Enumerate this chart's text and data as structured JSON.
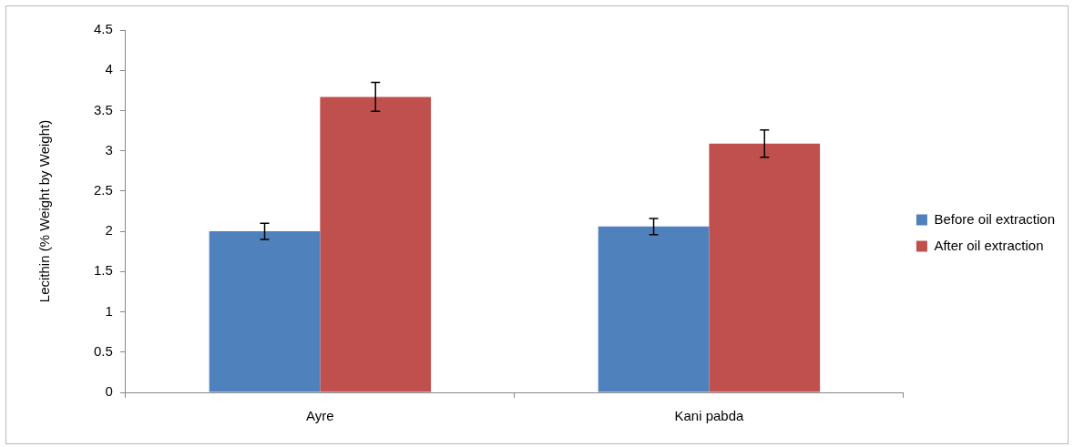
{
  "chart_data": {
    "type": "bar",
    "ylabel": "Lecithin (% Weight by Weight)",
    "categories": [
      "Ayre",
      "Kani pabda"
    ],
    "series": [
      {
        "name": "Before oil extraction",
        "color": "#4f81bd",
        "values": [
          2.0,
          2.06
        ],
        "errors": [
          0.1,
          0.1
        ]
      },
      {
        "name": "After oil extraction",
        "color": "#c0504d",
        "values": [
          3.67,
          3.09
        ],
        "errors": [
          0.18,
          0.17
        ]
      }
    ],
    "ylim": [
      0,
      4.5
    ],
    "yticks": [
      0,
      0.5,
      1,
      1.5,
      2,
      2.5,
      3,
      3.5,
      4,
      4.5
    ],
    "grid": false,
    "legend": "right"
  }
}
